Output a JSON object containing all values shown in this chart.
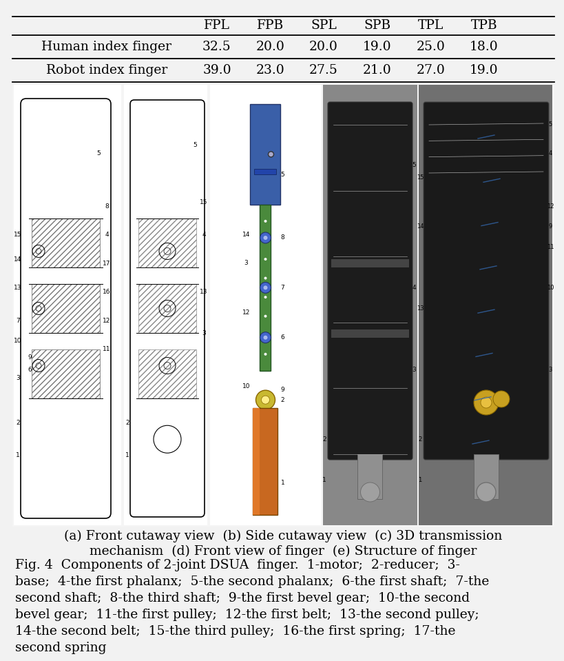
{
  "background_color": "#f2f2f2",
  "table": {
    "col_headers": [
      "",
      "FPL",
      "FPB",
      "SPL",
      "SPB",
      "TPL",
      "TPB"
    ],
    "rows": [
      [
        "Human index finger",
        "32.5",
        "20.0",
        "20.0",
        "19.0",
        "25.0",
        "18.0"
      ],
      [
        "Robot index finger",
        "39.0",
        "23.0",
        "27.5",
        "21.0",
        "27.0",
        "19.0"
      ]
    ]
  },
  "subcaption": "(a) Front cutaway view  (b) Side cutaway view  (c) 3D transmission\nmechanism  (d) Front view of finger  (e) Structure of finger",
  "fig_caption_lines": [
    "Fig. 4  Components of 2-joint DSUA  finger.  1-motor;  2-reducer;  3-",
    "base;  4-the first phalanx;  5-the second phalanx;  6-the first shaft;  7-the",
    "second shaft;  8-the third shaft;  9-the first bevel gear;  10-the second",
    "bevel gear;  11-the first pulley;  12-the first belt;  13-the second pulley;",
    "14-the second belt;  15-the third pulley;  16-the first spring;  17-the",
    "second spring"
  ],
  "table_fontsize": 13.5,
  "subcaption_fontsize": 13.5,
  "figcaption_fontsize": 13.5,
  "img_bg": "#e0dede",
  "img_left_bg": "#f8f8f8",
  "img_3d_blue": "#3a5fa8",
  "img_3d_green": "#4a8a3c",
  "img_3d_yellow": "#c8b830",
  "img_3d_orange": "#c86820",
  "img_photo_bg": "#1a1a1a",
  "img_photo_gray": "#606060"
}
